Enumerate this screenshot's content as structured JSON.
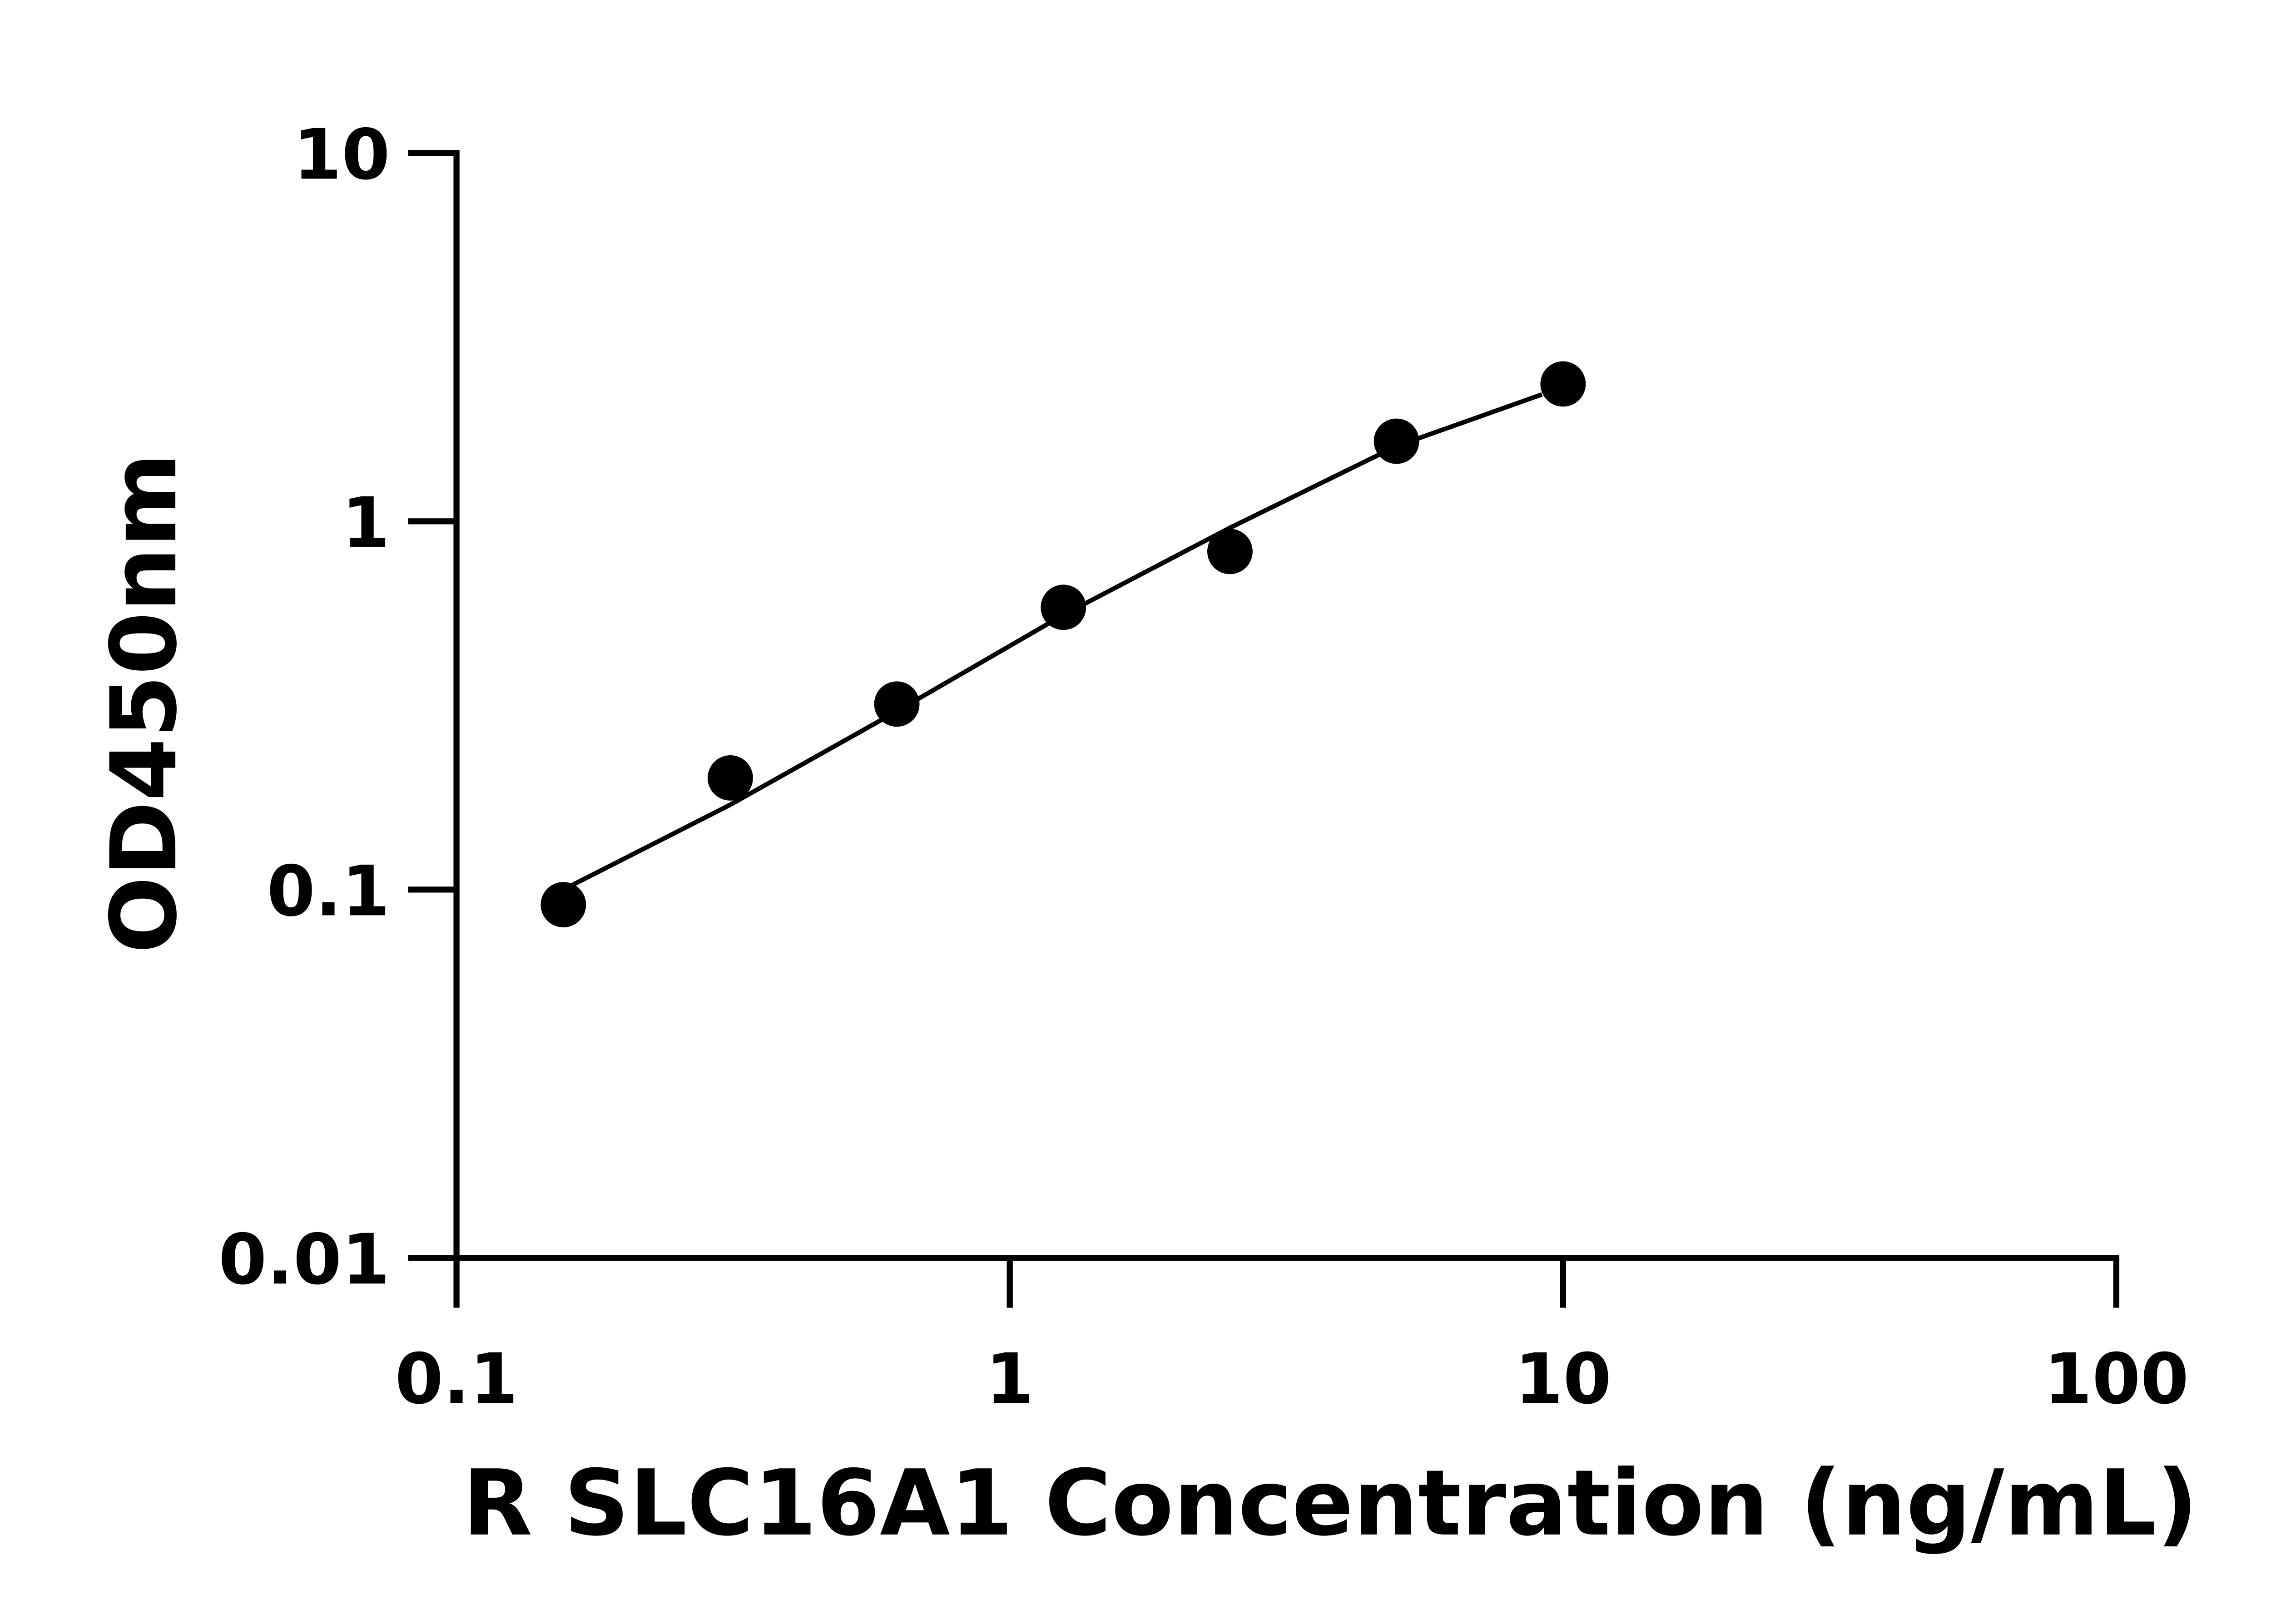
{
  "chart_data": {
    "type": "scatter",
    "title": "",
    "xlabel": "R SLC16A1 Concentration (ng/mL)",
    "ylabel": "OD450nm",
    "x_scale": "log",
    "y_scale": "log",
    "xlim": [
      0.1,
      100
    ],
    "ylim": [
      0.01,
      10
    ],
    "x_ticks": [
      "0.1",
      "1",
      "10",
      "100"
    ],
    "y_ticks": [
      "0.01",
      "0.1",
      "1",
      "10"
    ],
    "grid": false,
    "legend": "none",
    "points": {
      "x": [
        0.156,
        0.3125,
        0.625,
        1.25,
        2.5,
        5,
        10
      ],
      "y": [
        0.091,
        0.201,
        0.319,
        0.584,
        0.828,
        1.65,
        2.36
      ]
    },
    "fit_curve": {
      "x": [
        0.156,
        0.3125,
        0.625,
        1.25,
        2.5,
        5,
        9.16
      ],
      "y": [
        0.1,
        0.17,
        0.305,
        0.557,
        0.96,
        1.6,
        2.21
      ]
    },
    "colors": {
      "marker": "#000000",
      "line": "#000000"
    }
  }
}
